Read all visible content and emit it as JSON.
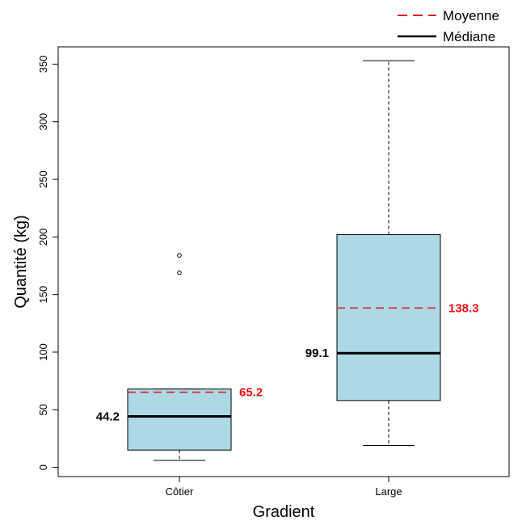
{
  "chart_data": {
    "type": "boxplot",
    "xlabel": "Gradient",
    "ylabel": "Quantité (kg)",
    "ylim": [
      -8,
      365
    ],
    "yticks": [
      0,
      50,
      100,
      150,
      200,
      250,
      300,
      350
    ],
    "categories": [
      "Côtier",
      "Large"
    ],
    "boxes": [
      {
        "category": "Côtier",
        "whisker_low": 6,
        "q1": 15,
        "median": 44.2,
        "q3": 68,
        "whisker_high": 68,
        "mean": 65.2,
        "outliers": [
          169,
          184
        ],
        "median_label": "44.2",
        "mean_label": "65.2"
      },
      {
        "category": "Large",
        "whisker_low": 19,
        "q1": 58,
        "median": 99.1,
        "q3": 202,
        "whisker_high": 353,
        "mean": 138.3,
        "outliers": [],
        "median_label": "99.1",
        "mean_label": "138.3"
      }
    ],
    "legend": {
      "position": "top-right",
      "entries": [
        {
          "label": "Moyenne",
          "style": "dashed",
          "color": "#dd2222"
        },
        {
          "label": "Médiane",
          "style": "solid",
          "color": "#000000"
        }
      ]
    },
    "colors": {
      "box_fill": "#add8e6",
      "mean_line": "#dd2222",
      "mean_label": "#ee1111",
      "median_line": "#000000"
    },
    "grid": false
  }
}
